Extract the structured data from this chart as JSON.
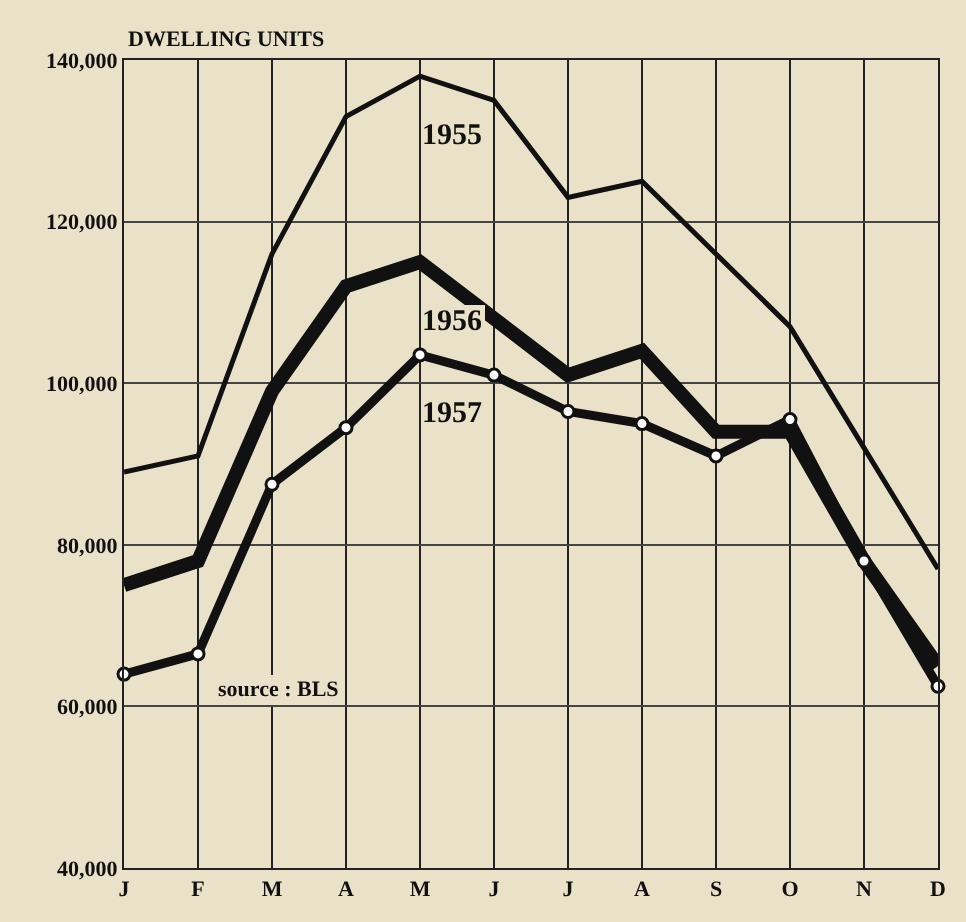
{
  "chart_data": {
    "type": "line",
    "ylabel": "DWELLING UNITS",
    "categories": [
      "J",
      "F",
      "M",
      "A",
      "M",
      "J",
      "J",
      "A",
      "S",
      "O",
      "N",
      "D"
    ],
    "series": [
      {
        "name": "1955",
        "color": "#111111",
        "marker": "none",
        "values": [
          89000,
          91000,
          116000,
          133000,
          138000,
          135000,
          123000,
          125000,
          116000,
          107000,
          92000,
          77000
        ]
      },
      {
        "name": "1956",
        "color": "#111111",
        "marker": "none",
        "values": [
          75000,
          78000,
          99000,
          112000,
          115000,
          108000,
          101000,
          104000,
          94000,
          94000,
          78000,
          65000
        ]
      },
      {
        "name": "1957",
        "color": "#111111",
        "marker": "circle",
        "values": [
          64000,
          66500,
          87500,
          94500,
          103500,
          101000,
          96500,
          95000,
          91000,
          95500,
          78000,
          62500
        ]
      }
    ],
    "ylim": [
      40000,
      140000
    ],
    "yticks": [
      {
        "value": 40000,
        "label": "40,000"
      },
      {
        "value": 60000,
        "label": "60,000"
      },
      {
        "value": 80000,
        "label": "80,000"
      },
      {
        "value": 100000,
        "label": "100,000"
      },
      {
        "value": 120000,
        "label": "120,000"
      },
      {
        "value": 140000,
        "label": "140,000"
      }
    ],
    "grid": true,
    "legend": false,
    "annotations": [
      "source : BLS"
    ]
  }
}
